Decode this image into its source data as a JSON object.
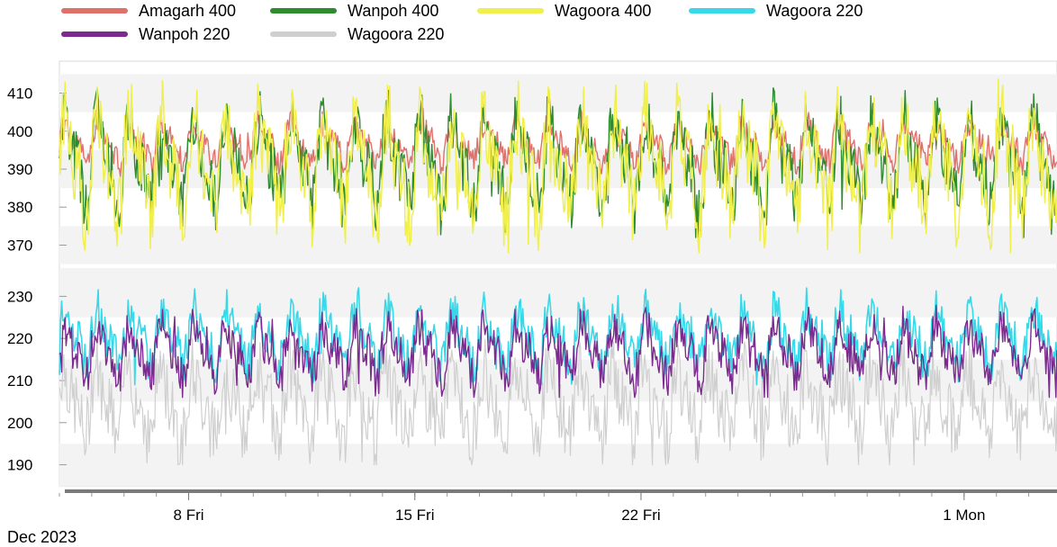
{
  "chart_data": {
    "type": "line",
    "legend_position": "top-left",
    "series": [
      {
        "name": "Amagarh 400",
        "color": "#e0706a",
        "panel": "upper"
      },
      {
        "name": "Wanpoh 400",
        "color": "#2e8b2e",
        "panel": "upper"
      },
      {
        "name": "Wagoora 400",
        "color": "#f0ef4c",
        "panel": "upper"
      },
      {
        "name": "Wagoora 220",
        "color": "#38d8e8",
        "panel": "lower"
      },
      {
        "name": "Wanpoh 220",
        "color": "#7b2a8e",
        "panel": "lower"
      },
      {
        "name": "Wagoora 220",
        "color": "#cfcfcf",
        "panel": "lower"
      }
    ],
    "upper_panel": {
      "ylim": [
        363,
        417
      ],
      "ticks": [
        370,
        380,
        390,
        400,
        410
      ],
      "levels": {
        "Amagarh 400": [
          388,
          406
        ],
        "Wanpoh 400": [
          372,
          412
        ],
        "Wagoora 400": [
          368,
          414
        ]
      }
    },
    "lower_panel": {
      "ylim": [
        185,
        235
      ],
      "ticks": [
        190,
        200,
        210,
        220,
        230
      ],
      "levels": {
        "Wagoora 220": [
          209,
          232
        ],
        "Wanpoh 220": [
          206,
          228
        ],
        "Wagoora 220 (grey)": [
          190,
          220
        ]
      }
    },
    "x_range": [
      "2023-12-04",
      "2023-12-03T21:00"
    ],
    "x_ticks": [
      {
        "label": "8 Fri",
        "date": "2023-12-08"
      },
      {
        "label": "15 Fri",
        "date": "2023-12-15"
      },
      {
        "label": "22 Fri",
        "date": "2023-12-22"
      },
      {
        "label": "1 Mon",
        "date": "2024-01-01"
      }
    ],
    "month_label": "Dec 2023",
    "grid": "alternating horizontal bands"
  }
}
